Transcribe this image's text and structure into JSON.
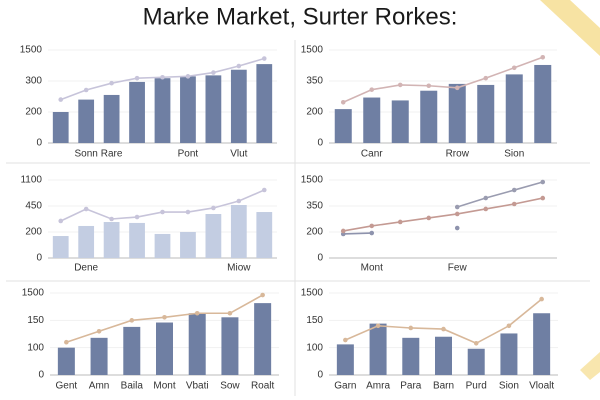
{
  "title": "Marke Market, Surter Rorkes:",
  "chart_data": [
    {
      "type": "bar",
      "yticks": [
        0,
        200,
        300,
        1500
      ],
      "ylim": [
        0,
        1500
      ],
      "categories": [
        null,
        "Sonn",
        "Rare",
        null,
        null,
        "Pont",
        null,
        "Vlut",
        null
      ],
      "series": [
        {
          "type": "bar",
          "color": "#6f7fa3",
          "values": [
            200,
            240,
            255,
            297,
            409,
            480,
            518,
            736,
            954
          ]
        },
        {
          "type": "line",
          "color": "#c7c4da",
          "values": [
            240,
            271,
            293,
            409,
            445,
            480,
            626,
            880,
            1170
          ]
        }
      ]
    },
    {
      "type": "bar",
      "yticks": [
        0,
        200,
        350,
        1500
      ],
      "ylim": [
        0,
        1500
      ],
      "categories": [
        null,
        "Canr",
        null,
        null,
        "Rrow",
        null,
        "Sion",
        null
      ],
      "series": [
        {
          "type": "bar",
          "color": "#6f7fa3",
          "values": [
            214,
            270,
            256,
            303,
            336,
            331,
            595,
            945
          ]
        },
        {
          "type": "line",
          "color": "#d2b4b4",
          "values": [
            247,
            308,
            331,
            327,
            317,
            455,
            840,
            1230
          ]
        }
      ]
    },
    {
      "type": "bar",
      "yticks": [
        0,
        200,
        450,
        1100
      ],
      "ylim": [
        0,
        1100
      ],
      "categories": [
        null,
        "Dene",
        null,
        null,
        null,
        null,
        null,
        "Miow",
        null
      ],
      "series": [
        {
          "type": "bar",
          "color": "#c3cde2",
          "values": [
            169,
            258,
            296,
            287,
            185,
            200,
            373,
            475,
            392
          ]
        },
        {
          "type": "line",
          "color": "#c7c4da",
          "values": [
            306,
            421,
            325,
            344,
            392,
            392,
            431,
            575,
            850
          ]
        }
      ]
    },
    {
      "type": "line",
      "yticks": [
        0,
        200,
        350,
        1500
      ],
      "ylim": [
        0,
        1500
      ],
      "categories": [
        null,
        "Mont",
        null,
        null,
        "Few",
        null,
        null,
        null
      ],
      "series": [
        {
          "type": "line",
          "color": "#8e93ad",
          "values": [
            185,
            192,
            null,
            null,
            223,
            null,
            null,
            null
          ]
        },
        {
          "type": "line",
          "color": "#c49a93",
          "values": [
            206,
            235,
            258,
            281,
            304,
            333,
            438,
            700
          ]
        },
        {
          "type": "line",
          "color": "#9a9cb0",
          "values": [
            null,
            null,
            null,
            null,
            344,
            702,
            1055,
            1410
          ]
        }
      ]
    },
    {
      "type": "bar",
      "yticks": [
        0,
        100,
        150,
        1500
      ],
      "ylim": [
        0,
        1500
      ],
      "categories": [
        "Gent",
        "Amn",
        "Baila",
        "Mont",
        "Vbati",
        "Sow",
        "Roalt"
      ],
      "series": [
        {
          "type": "bar",
          "color": "#6f7fa3",
          "values": [
            100,
            118,
            138,
            146,
            500,
            300,
            1000
          ]
        },
        {
          "type": "line",
          "color": "#d8b89a",
          "values": [
            110,
            130,
            150,
            300,
            500,
            500,
            1400
          ]
        }
      ]
    },
    {
      "type": "bar",
      "yticks": [
        0,
        100,
        150,
        1500
      ],
      "ylim": [
        0,
        1500
      ],
      "categories": [
        "Garn",
        "Amra",
        "Para",
        "Barn",
        "Purd",
        "Sion",
        "Vloalt"
      ],
      "series": [
        {
          "type": "bar",
          "color": "#6f7fa3",
          "values": [
            106,
            144,
            118,
            120,
            96,
            126,
            500
          ]
        },
        {
          "type": "line",
          "color": "#d8b89a",
          "values": [
            114,
            140,
            136,
            134,
            108,
            140,
            1200
          ]
        }
      ]
    }
  ]
}
